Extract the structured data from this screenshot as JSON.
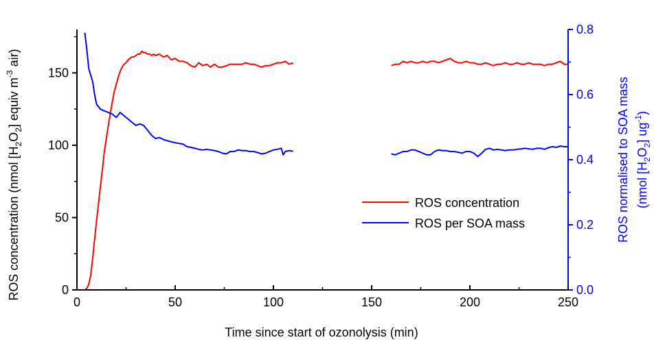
{
  "chart_data": {
    "type": "line",
    "xlabel": "Time since start of ozonolysis (min)",
    "ylabel_left": {
      "pre": "ROS concentration (nmol [H",
      "sub1": "2",
      "mid1": "O",
      "sub2": "2",
      "mid2": "] equiv m",
      "sup": "-3",
      "post": " air)"
    },
    "ylabel_right_line1": "ROS normalised to SOA mass",
    "ylabel_right_line2": {
      "pre": "(nmol [H",
      "sub1": "2",
      "mid1": "O",
      "sub2": "2",
      "mid2": "] ug",
      "sup": "-1",
      "post": ")"
    },
    "xlim": [
      0,
      250
    ],
    "ylim_left": [
      0,
      180
    ],
    "ylim_right": [
      0,
      0.8
    ],
    "x_ticks": [
      0,
      50,
      100,
      150,
      200,
      250
    ],
    "y_left_ticks": [
      0,
      50,
      100,
      150
    ],
    "y_right_ticks": [
      "0.0",
      "0.2",
      "0.4",
      "0.6",
      "0.8"
    ],
    "legend_position": "center-right",
    "series": [
      {
        "name": "ROS concentration",
        "axis": "left",
        "color": "#ff0000",
        "segments": [
          [
            [
              3,
              0
            ],
            [
              4,
              0
            ],
            [
              5,
              1
            ],
            [
              6,
              4
            ],
            [
              7,
              10
            ],
            [
              8,
              22
            ],
            [
              9,
              35
            ],
            [
              10,
              48
            ],
            [
              11,
              60
            ],
            [
              12,
              72
            ],
            [
              13,
              84
            ],
            [
              14,
              96
            ],
            [
              15,
              105
            ],
            [
              16,
              114
            ],
            [
              17,
              122
            ],
            [
              18,
              130
            ],
            [
              19,
              137
            ],
            [
              20,
              142
            ],
            [
              21,
              147
            ],
            [
              22,
              151
            ],
            [
              23,
              154
            ],
            [
              24,
              156
            ],
            [
              25,
              157
            ],
            [
              26,
              159
            ],
            [
              27,
              160
            ],
            [
              28,
              161
            ],
            [
              29,
              161
            ],
            [
              30,
              162
            ],
            [
              31,
              163
            ],
            [
              32,
              163
            ],
            [
              33,
              165
            ],
            [
              34,
              164
            ],
            [
              35,
              164
            ],
            [
              36,
              163
            ],
            [
              37,
              163
            ],
            [
              38,
              162
            ],
            [
              39,
              163
            ],
            [
              40,
              162
            ],
            [
              42,
              163
            ],
            [
              44,
              161
            ],
            [
              46,
              162
            ],
            [
              48,
              159
            ],
            [
              50,
              160
            ],
            [
              52,
              158
            ],
            [
              54,
              158
            ],
            [
              56,
              157
            ],
            [
              58,
              155
            ],
            [
              60,
              154
            ],
            [
              62,
              157
            ],
            [
              64,
              155
            ],
            [
              66,
              156
            ],
            [
              68,
              154
            ],
            [
              70,
              156
            ],
            [
              72,
              154
            ],
            [
              74,
              154
            ],
            [
              76,
              155
            ],
            [
              78,
              156
            ],
            [
              80,
              156
            ],
            [
              82,
              156
            ],
            [
              84,
              156
            ],
            [
              86,
              157
            ],
            [
              88,
              156
            ],
            [
              90,
              156
            ],
            [
              92,
              155
            ],
            [
              94,
              154
            ],
            [
              96,
              155
            ],
            [
              98,
              155
            ],
            [
              100,
              156
            ],
            [
              102,
              157
            ],
            [
              104,
              157
            ],
            [
              106,
              158
            ],
            [
              108,
              156
            ],
            [
              110,
              157
            ]
          ],
          [
            [
              160,
              155
            ],
            [
              162,
              156
            ],
            [
              164,
              156
            ],
            [
              166,
              158
            ],
            [
              168,
              157
            ],
            [
              170,
              158
            ],
            [
              172,
              157
            ],
            [
              174,
              157
            ],
            [
              176,
              158
            ],
            [
              178,
              157
            ],
            [
              180,
              158
            ],
            [
              182,
              158
            ],
            [
              184,
              157
            ],
            [
              186,
              158
            ],
            [
              188,
              159
            ],
            [
              190,
              160
            ],
            [
              192,
              158
            ],
            [
              194,
              157
            ],
            [
              196,
              157
            ],
            [
              198,
              158
            ],
            [
              200,
              157
            ],
            [
              202,
              157
            ],
            [
              204,
              156
            ],
            [
              206,
              156
            ],
            [
              208,
              157
            ],
            [
              210,
              156
            ],
            [
              212,
              155
            ],
            [
              214,
              156
            ],
            [
              216,
              156
            ],
            [
              218,
              157
            ],
            [
              220,
              156
            ],
            [
              222,
              156
            ],
            [
              224,
              157
            ],
            [
              226,
              156
            ],
            [
              228,
              156
            ],
            [
              230,
              157
            ],
            [
              232,
              156
            ],
            [
              234,
              156
            ],
            [
              236,
              156
            ],
            [
              238,
              155
            ],
            [
              240,
              156
            ],
            [
              242,
              156
            ],
            [
              244,
              157
            ],
            [
              246,
              158
            ],
            [
              248,
              156
            ],
            [
              250,
              156
            ]
          ]
        ]
      },
      {
        "name": "ROS per SOA mass",
        "axis": "right",
        "color": "#0000ff",
        "segments": [
          [
            [
              4,
              0.79
            ],
            [
              5,
              0.74
            ],
            [
              6,
              0.68
            ],
            [
              7,
              0.66
            ],
            [
              8,
              0.64
            ],
            [
              9,
              0.6
            ],
            [
              10,
              0.57
            ],
            [
              12,
              0.555
            ],
            [
              14,
              0.55
            ],
            [
              16,
              0.545
            ],
            [
              18,
              0.54
            ],
            [
              20,
              0.53
            ],
            [
              22,
              0.545
            ],
            [
              24,
              0.535
            ],
            [
              26,
              0.525
            ],
            [
              28,
              0.515
            ],
            [
              30,
              0.505
            ],
            [
              32,
              0.51
            ],
            [
              34,
              0.505
            ],
            [
              36,
              0.49
            ],
            [
              38,
              0.475
            ],
            [
              40,
              0.465
            ],
            [
              42,
              0.468
            ],
            [
              44,
              0.462
            ],
            [
              46,
              0.458
            ],
            [
              48,
              0.455
            ],
            [
              50,
              0.452
            ],
            [
              52,
              0.45
            ],
            [
              54,
              0.448
            ],
            [
              56,
              0.44
            ],
            [
              58,
              0.438
            ],
            [
              60,
              0.435
            ],
            [
              62,
              0.432
            ],
            [
              64,
              0.43
            ],
            [
              66,
              0.432
            ],
            [
              68,
              0.43
            ],
            [
              70,
              0.428
            ],
            [
              72,
              0.425
            ],
            [
              74,
              0.42
            ],
            [
              76,
              0.418
            ],
            [
              78,
              0.425
            ],
            [
              80,
              0.425
            ],
            [
              82,
              0.43
            ],
            [
              84,
              0.428
            ],
            [
              86,
              0.428
            ],
            [
              88,
              0.425
            ],
            [
              90,
              0.425
            ],
            [
              92,
              0.422
            ],
            [
              94,
              0.418
            ],
            [
              96,
              0.42
            ],
            [
              98,
              0.425
            ],
            [
              100,
              0.43
            ],
            [
              102,
              0.432
            ],
            [
              104,
              0.435
            ],
            [
              105,
              0.415
            ],
            [
              106,
              0.425
            ],
            [
              108,
              0.428
            ],
            [
              110,
              0.426
            ]
          ],
          [
            [
              160,
              0.418
            ],
            [
              162,
              0.415
            ],
            [
              164,
              0.42
            ],
            [
              166,
              0.425
            ],
            [
              168,
              0.425
            ],
            [
              170,
              0.43
            ],
            [
              172,
              0.43
            ],
            [
              174,
              0.425
            ],
            [
              176,
              0.42
            ],
            [
              178,
              0.415
            ],
            [
              180,
              0.415
            ],
            [
              182,
              0.425
            ],
            [
              184,
              0.43
            ],
            [
              186,
              0.428
            ],
            [
              188,
              0.428
            ],
            [
              190,
              0.425
            ],
            [
              192,
              0.425
            ],
            [
              194,
              0.423
            ],
            [
              196,
              0.42
            ],
            [
              198,
              0.425
            ],
            [
              200,
              0.425
            ],
            [
              202,
              0.42
            ],
            [
              204,
              0.41
            ],
            [
              206,
              0.42
            ],
            [
              208,
              0.432
            ],
            [
              210,
              0.435
            ],
            [
              212,
              0.43
            ],
            [
              214,
              0.432
            ],
            [
              216,
              0.43
            ],
            [
              218,
              0.428
            ],
            [
              220,
              0.43
            ],
            [
              222,
              0.43
            ],
            [
              224,
              0.432
            ],
            [
              226,
              0.433
            ],
            [
              228,
              0.435
            ],
            [
              230,
              0.433
            ],
            [
              232,
              0.432
            ],
            [
              234,
              0.435
            ],
            [
              236,
              0.435
            ],
            [
              238,
              0.432
            ],
            [
              240,
              0.437
            ],
            [
              242,
              0.44
            ],
            [
              244,
              0.438
            ],
            [
              246,
              0.442
            ],
            [
              248,
              0.44
            ],
            [
              250,
              0.44
            ]
          ]
        ]
      }
    ]
  }
}
